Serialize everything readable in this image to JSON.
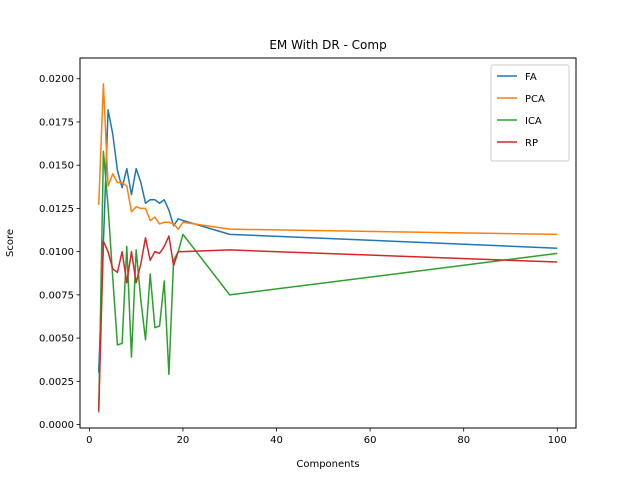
{
  "chart_data": {
    "type": "line",
    "title": "EM With DR - Comp",
    "xlabel": "Components",
    "ylabel": "Score",
    "xlim": [
      -2,
      104
    ],
    "ylim": [
      -0.0002,
      0.0212
    ],
    "xticks": [
      0,
      20,
      40,
      60,
      80,
      100
    ],
    "yticks": [
      0.0,
      0.0025,
      0.005,
      0.0075,
      0.01,
      0.0125,
      0.015,
      0.0175,
      0.02
    ],
    "ytick_labels": [
      "0.0000",
      "0.0025",
      "0.0050",
      "0.0075",
      "0.0100",
      "0.0125",
      "0.0150",
      "0.0175",
      "0.0200"
    ],
    "legend_position": "top-right",
    "grid": false,
    "x": [
      2,
      3,
      4,
      5,
      6,
      7,
      8,
      9,
      10,
      11,
      12,
      13,
      14,
      15,
      16,
      17,
      18,
      19,
      20,
      30,
      100
    ],
    "series": [
      {
        "name": "FA",
        "color": "#1f77b4",
        "values": [
          0.003,
          0.0105,
          0.0182,
          0.0168,
          0.0147,
          0.0137,
          0.0148,
          0.0133,
          0.0148,
          0.014,
          0.0128,
          0.013,
          0.013,
          0.0128,
          0.013,
          0.0124,
          0.0115,
          0.0119,
          0.0118,
          0.011,
          0.0102
        ]
      },
      {
        "name": "PCA",
        "color": "#ff7f0e",
        "values": [
          0.0127,
          0.0197,
          0.0138,
          0.0145,
          0.014,
          0.014,
          0.0138,
          0.0123,
          0.0126,
          0.0125,
          0.0125,
          0.0118,
          0.012,
          0.0116,
          0.0117,
          0.0117,
          0.0116,
          0.0113,
          0.0117,
          0.0113,
          0.011
        ]
      },
      {
        "name": "ICA",
        "color": "#2ca02c",
        "values": [
          0.0007,
          0.0158,
          0.0126,
          0.0085,
          0.0046,
          0.0047,
          0.0103,
          0.0039,
          0.0101,
          0.0072,
          0.0049,
          0.0087,
          0.0056,
          0.0057,
          0.0083,
          0.0029,
          0.0095,
          0.01,
          0.011,
          0.0075,
          0.0099
        ]
      },
      {
        "name": "RP",
        "color": "#d62728",
        "values": [
          0.0008,
          0.0106,
          0.01,
          0.009,
          0.0088,
          0.01,
          0.0082,
          0.01,
          0.0082,
          0.0093,
          0.0108,
          0.0095,
          0.01,
          0.0099,
          0.0103,
          0.0109,
          0.0092,
          0.01,
          0.01,
          0.0101,
          0.0094
        ]
      }
    ]
  }
}
